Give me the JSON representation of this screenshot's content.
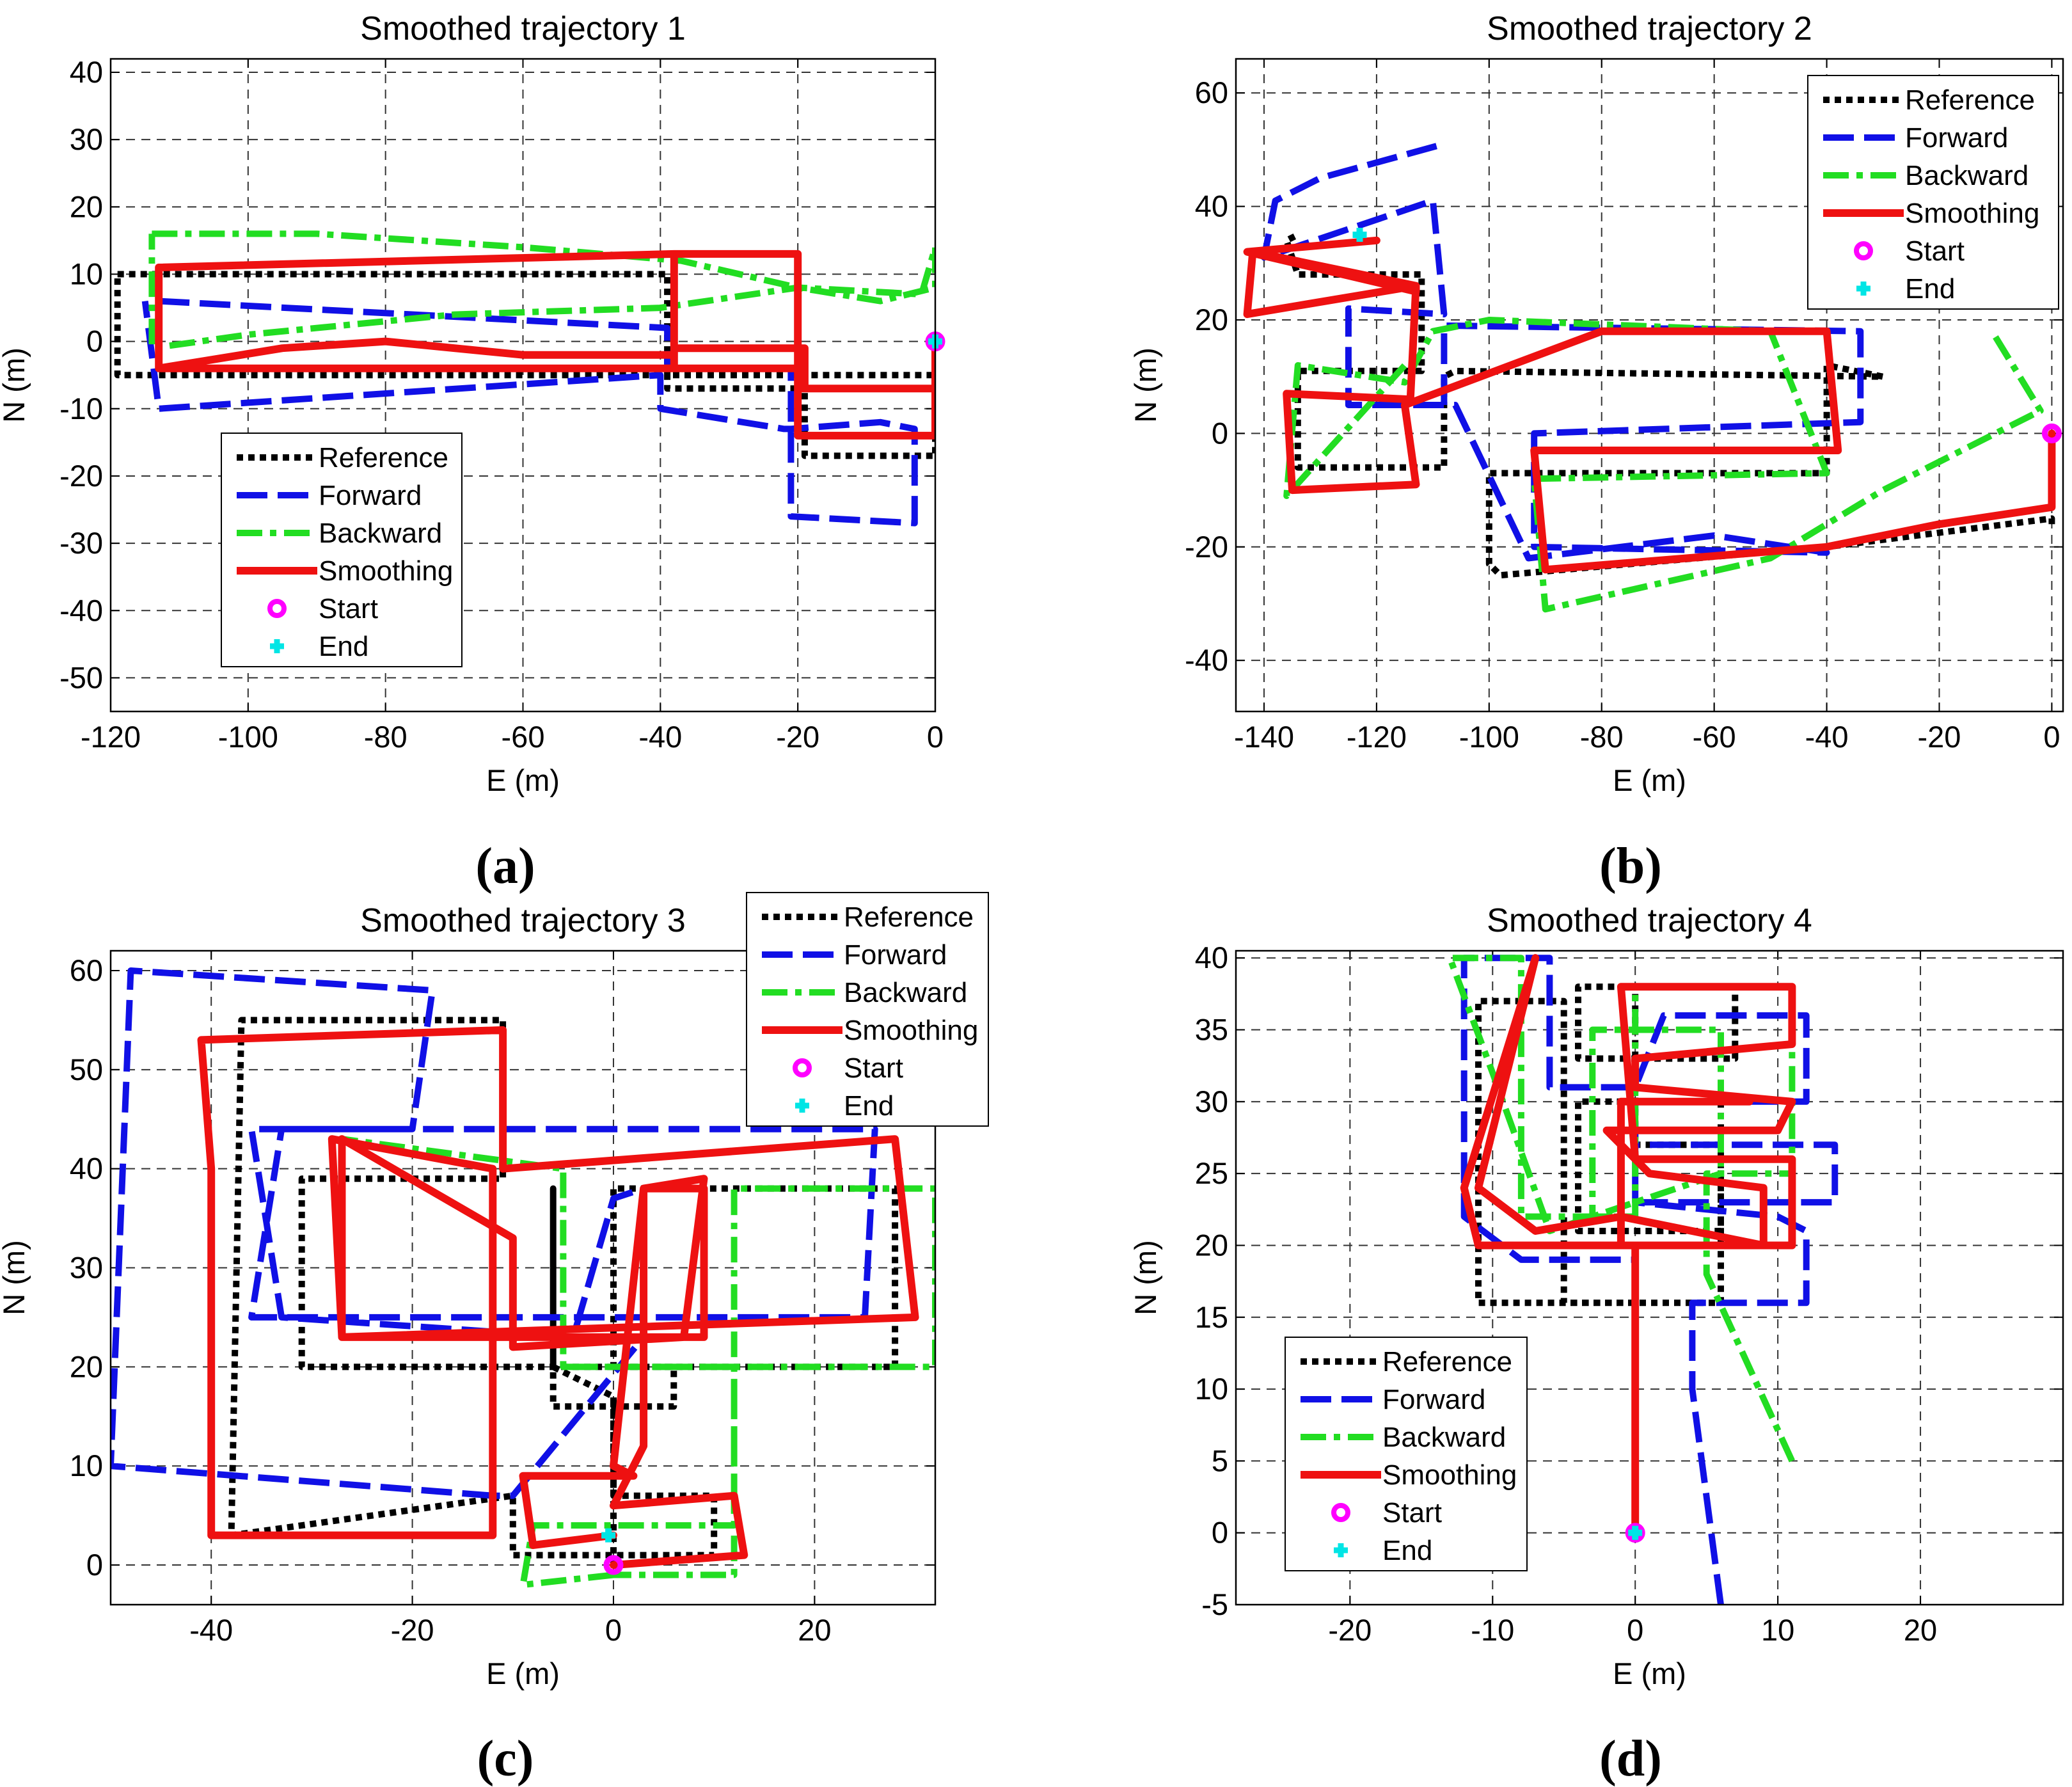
{
  "chart_data": [
    {
      "type": "line",
      "panel": "(a)",
      "title": "Smoothed trajectory 1",
      "xlabel": "E (m)",
      "ylabel": "N (m)",
      "xlim": [
        -120,
        0
      ],
      "ylim": [
        -55,
        42
      ],
      "xticks": [
        -120,
        -100,
        -80,
        -60,
        -40,
        -20,
        0
      ],
      "yticks": [
        -50,
        -40,
        -30,
        -20,
        -10,
        0,
        10,
        20,
        30,
        40
      ],
      "grid": true,
      "legend_location": "lower-left",
      "legend": [
        "Reference",
        "Forward",
        "Backward",
        "Smoothing",
        "Start",
        "End"
      ],
      "start": [
        0,
        0
      ],
      "end": [
        0,
        0
      ],
      "series": [
        {
          "name": "Reference",
          "x": [
            -119,
            -39,
            -39,
            -19,
            -19,
            0,
            0,
            -19,
            -19,
            -39,
            -39,
            -119,
            -119
          ],
          "y": [
            10,
            10,
            -5,
            -5,
            -17,
            -17,
            -5,
            -5,
            -7,
            -7,
            -5,
            -5,
            10
          ]
        },
        {
          "name": "Forward",
          "x": [
            -113,
            -39,
            -39,
            -21,
            -21,
            -3,
            -3,
            -8,
            -21,
            -22,
            -40,
            -40,
            -113,
            -115
          ],
          "y": [
            6,
            2,
            -4,
            -4,
            -26,
            -27,
            -13,
            -12,
            -13,
            -13,
            -10,
            -5,
            -10,
            6
          ]
        },
        {
          "name": "Backward",
          "x": [
            -114,
            -90,
            -60,
            -37,
            -20,
            -8,
            0,
            0,
            -2,
            -20,
            -40,
            -70,
            -100,
            -114,
            -114
          ],
          "y": [
            16,
            16,
            14,
            12,
            8,
            6,
            8,
            14,
            7,
            8,
            5,
            4,
            1,
            -1,
            16
          ]
        },
        {
          "name": "Smoothing",
          "x": [
            0,
            0,
            -20,
            -20,
            -38,
            -38,
            -113,
            -113,
            -38,
            -38,
            -20,
            -20,
            0,
            -2,
            -19,
            -19,
            -38,
            -38,
            -60,
            -80,
            -95,
            -113
          ],
          "y": [
            0,
            -14,
            -14,
            -4,
            -4,
            13,
            11,
            -4,
            -4,
            13,
            13,
            -7,
            -7,
            -7,
            -7,
            -1,
            -1,
            -2,
            -2,
            0,
            -1,
            -4
          ]
        }
      ]
    },
    {
      "type": "line",
      "panel": "(b)",
      "title": "Smoothed trajectory 2",
      "xlabel": "E (m)",
      "ylabel": "N (m)",
      "xlim": [
        -145,
        2
      ],
      "ylim": [
        -49,
        66
      ],
      "xticks": [
        -140,
        -120,
        -100,
        -80,
        -60,
        -40,
        -20,
        0
      ],
      "yticks": [
        -40,
        -20,
        0,
        20,
        40,
        60
      ],
      "grid": true,
      "legend_location": "upper-right",
      "legend": [
        "Reference",
        "Forward",
        "Backward",
        "Smoothing",
        "Start",
        "End"
      ],
      "start": [
        0,
        0
      ],
      "end": [
        -123,
        35
      ],
      "series": [
        {
          "name": "Reference",
          "x": [
            0,
            0,
            -40,
            -98,
            -100,
            -100,
            -40,
            -40,
            -30,
            -106,
            -108,
            -108,
            -134,
            -134,
            -112,
            -112,
            -134,
            -136,
            -134
          ],
          "y": [
            -16,
            -15,
            -20,
            -25,
            -23,
            -7,
            -7,
            12,
            10,
            11,
            10,
            -6,
            -6,
            11,
            11,
            28,
            28,
            34,
            35
          ]
        },
        {
          "name": "Forward",
          "x": [
            -108,
            -108,
            -34,
            -34,
            -92,
            -92,
            -40,
            -60,
            -93,
            -106,
            -106,
            -125,
            -125,
            -108,
            -110,
            -140,
            -138,
            -130,
            -108
          ],
          "y": [
            5,
            19,
            18,
            2,
            0,
            -20,
            -21,
            -18,
            -22,
            5,
            5,
            5,
            22,
            21,
            41,
            31,
            41,
            45,
            51
          ]
        },
        {
          "name": "Backward",
          "x": [
            -10,
            -2,
            -30,
            -50,
            -90,
            -92,
            -40,
            -50,
            -100,
            -110,
            -115,
            -134,
            -136,
            -115
          ],
          "y": [
            17,
            4,
            -10,
            -22,
            -31,
            -8,
            -7,
            18,
            20,
            18,
            9,
            12,
            -11,
            12
          ]
        },
        {
          "name": "Smoothing",
          "x": [
            0,
            0,
            -20,
            -40,
            -90,
            -92,
            -38,
            -40,
            -80,
            -115,
            -113,
            -135,
            -136,
            -114,
            -113,
            -143,
            -142,
            -113,
            -113,
            -143,
            -120
          ],
          "y": [
            0,
            -13,
            -16,
            -20,
            -24,
            -3,
            -3,
            18,
            18,
            5,
            -9,
            -10,
            7,
            6,
            26,
            21,
            32,
            26,
            25,
            32,
            34
          ]
        }
      ]
    },
    {
      "type": "line",
      "panel": "(c)",
      "title": "Smoothed trajectory 3",
      "xlabel": "E (m)",
      "ylabel": "N (m)",
      "xlim": [
        -50,
        32
      ],
      "ylim": [
        -4,
        62
      ],
      "xticks": [
        -40,
        -20,
        0,
        20
      ],
      "yticks": [
        0,
        10,
        20,
        30,
        40,
        50,
        60
      ],
      "grid": true,
      "legend_location": "upper-right",
      "legend": [
        "Reference",
        "Forward",
        "Backward",
        "Smoothing",
        "Start",
        "End"
      ],
      "start": [
        0,
        0
      ],
      "end": [
        -0.5,
        3
      ],
      "series": [
        {
          "name": "Reference",
          "x": [
            0,
            0,
            0,
            10,
            10,
            -10,
            -10,
            -38,
            -37,
            -11,
            -11,
            -31,
            -31,
            28,
            28,
            0,
            0,
            6,
            6,
            -6,
            -6,
            -6,
            0
          ],
          "y": [
            0,
            17,
            7,
            7,
            1,
            1,
            7,
            3,
            55,
            55,
            39,
            39,
            20,
            20,
            38,
            38,
            20,
            20,
            16,
            16,
            38,
            20,
            17
          ]
        },
        {
          "name": "Forward",
          "x": [
            -12,
            -50,
            -48,
            -18,
            -20,
            -33,
            -36,
            25,
            26,
            -36,
            -33,
            -4,
            0,
            3,
            3,
            -10,
            -12
          ],
          "y": [
            7,
            10,
            60,
            58,
            44,
            44,
            25,
            25,
            44,
            44,
            25,
            23,
            37,
            38,
            23,
            7,
            7
          ]
        },
        {
          "name": "Backward",
          "x": [
            0,
            -9,
            -8,
            12,
            12,
            32,
            32,
            -5,
            -5,
            -27,
            -27,
            -5,
            -5,
            12,
            12,
            0
          ],
          "y": [
            -1,
            -2,
            4,
            4,
            38,
            38,
            20,
            20,
            40,
            43,
            23,
            23,
            20,
            20,
            -1,
            -1
          ]
        },
        {
          "name": "Smoothing",
          "x": [
            0,
            13,
            12,
            0,
            3,
            3,
            9,
            7,
            -10,
            -10,
            -27,
            -27,
            30,
            28,
            -11,
            -11,
            -41,
            -40,
            -40,
            -12,
            -12,
            -28,
            -27,
            9,
            9,
            3,
            0,
            2,
            -9,
            -8,
            0,
            -0.5
          ],
          "y": [
            0,
            1,
            7,
            6,
            12,
            38,
            39,
            23,
            22,
            33,
            43,
            23,
            25,
            43,
            40,
            54,
            53,
            40,
            3,
            3,
            40,
            43,
            23,
            23,
            38,
            38,
            10,
            9,
            9,
            2,
            3,
            3
          ]
        }
      ]
    },
    {
      "type": "line",
      "panel": "(d)",
      "title": "Smoothed trajectory 4",
      "xlabel": "E (m)",
      "ylabel": "N (m)",
      "xlim": [
        -28,
        30
      ],
      "ylim": [
        -5,
        40.5
      ],
      "xticks": [
        -20,
        -10,
        0,
        10,
        20
      ],
      "yticks": [
        -5,
        0,
        5,
        10,
        15,
        20,
        25,
        30,
        35,
        40
      ],
      "grid": true,
      "legend_location": "lower-left",
      "legend": [
        "Reference",
        "Forward",
        "Backward",
        "Smoothing",
        "Start",
        "End"
      ],
      "start": [
        0,
        0
      ],
      "end": [
        0,
        0
      ],
      "series": [
        {
          "name": "Reference",
          "x": [
            0,
            0,
            0,
            -11,
            -11,
            -5,
            -5,
            6,
            6,
            -4,
            -4,
            6,
            6,
            0,
            0,
            -4,
            -4,
            7,
            7,
            0
          ],
          "y": [
            0,
            15,
            16,
            16,
            37,
            37,
            16,
            16,
            30,
            30,
            21,
            21,
            27,
            27,
            38,
            38,
            33,
            33,
            38,
            38
          ]
        },
        {
          "name": "Forward",
          "x": [
            6,
            4,
            4,
            12,
            12,
            10,
            0,
            0,
            14,
            14,
            0,
            0,
            12,
            12,
            2,
            0,
            -4,
            -6,
            -6,
            -12,
            -12,
            -8,
            0
          ],
          "y": [
            -5,
            10,
            16,
            16,
            21,
            22,
            23,
            27,
            27,
            23,
            23,
            30,
            30,
            36,
            36,
            31,
            31,
            31,
            40,
            40,
            22,
            19,
            19
          ]
        },
        {
          "name": "Backward",
          "x": [
            11,
            5,
            5,
            11,
            11,
            0,
            0,
            -3,
            -3,
            6,
            6,
            -6,
            -10,
            -13,
            -8,
            -8,
            0
          ],
          "y": [
            5,
            18,
            25,
            25,
            38,
            38,
            22,
            22,
            35,
            35,
            25,
            21,
            32,
            40,
            40,
            22,
            22
          ]
        },
        {
          "name": "Smoothing",
          "x": [
            0,
            0,
            0,
            -11,
            -12,
            -7,
            -7,
            -11,
            -7,
            -1,
            9,
            9,
            1,
            -2,
            10,
            11,
            0,
            0,
            11,
            11,
            -1,
            0,
            11,
            11,
            -1,
            -1,
            8
          ],
          "y": [
            0,
            15,
            20,
            20,
            24,
            40,
            40,
            24,
            21,
            22,
            20,
            24,
            25,
            28,
            28,
            30,
            31,
            33,
            34,
            38,
            38,
            26,
            26,
            20,
            20,
            30,
            30
          ]
        }
      ]
    }
  ]
}
